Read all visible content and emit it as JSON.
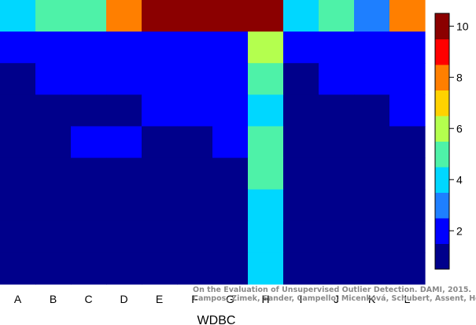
{
  "chart_data": {
    "type": "heatmap",
    "title": "",
    "xlabel": "WDBC",
    "ylabel": "",
    "columns": [
      "A",
      "B",
      "C",
      "D",
      "E",
      "F",
      "G",
      "H",
      "I",
      "J",
      "K",
      "L"
    ],
    "row_count": 9,
    "rows_top_to_bottom": [
      [
        4,
        5,
        5,
        8,
        10,
        10,
        10,
        10,
        4,
        5,
        3,
        8
      ],
      [
        2,
        2,
        2,
        2,
        2,
        2,
        2,
        6,
        2,
        2,
        2,
        2
      ],
      [
        1,
        2,
        2,
        2,
        2,
        2,
        2,
        5,
        1,
        2,
        2,
        2
      ],
      [
        1,
        1,
        1,
        1,
        2,
        2,
        2,
        4,
        1,
        1,
        1,
        2
      ],
      [
        1,
        1,
        2,
        2,
        1,
        1,
        2,
        5,
        1,
        1,
        1,
        1
      ],
      [
        1,
        1,
        1,
        1,
        1,
        1,
        1,
        5,
        1,
        1,
        1,
        1
      ],
      [
        1,
        1,
        1,
        1,
        1,
        1,
        1,
        4,
        1,
        1,
        1,
        1
      ],
      [
        1,
        1,
        1,
        1,
        1,
        1,
        1,
        4,
        1,
        1,
        1,
        1
      ],
      [
        1,
        1,
        1,
        1,
        1,
        1,
        1,
        4,
        1,
        1,
        1,
        1
      ]
    ],
    "colorbar": {
      "min": 0.5,
      "max": 10.5,
      "ticks": [
        2,
        4,
        6,
        8,
        10
      ],
      "colors": [
        "#00008B",
        "#0000FF",
        "#1E7FFF",
        "#00D7FF",
        "#4EF2A8",
        "#B4FF4E",
        "#FFD200",
        "#FF7F00",
        "#FF0000",
        "#8B0000"
      ]
    },
    "grid": false
  },
  "credit": {
    "line1": "On the Evaluation of Unsupervised Outlier Detection. DAMI, 2015.",
    "line2": "Campos, Zimek, Sander, Campello, Micenková, Schubert, Assent, Houle"
  }
}
